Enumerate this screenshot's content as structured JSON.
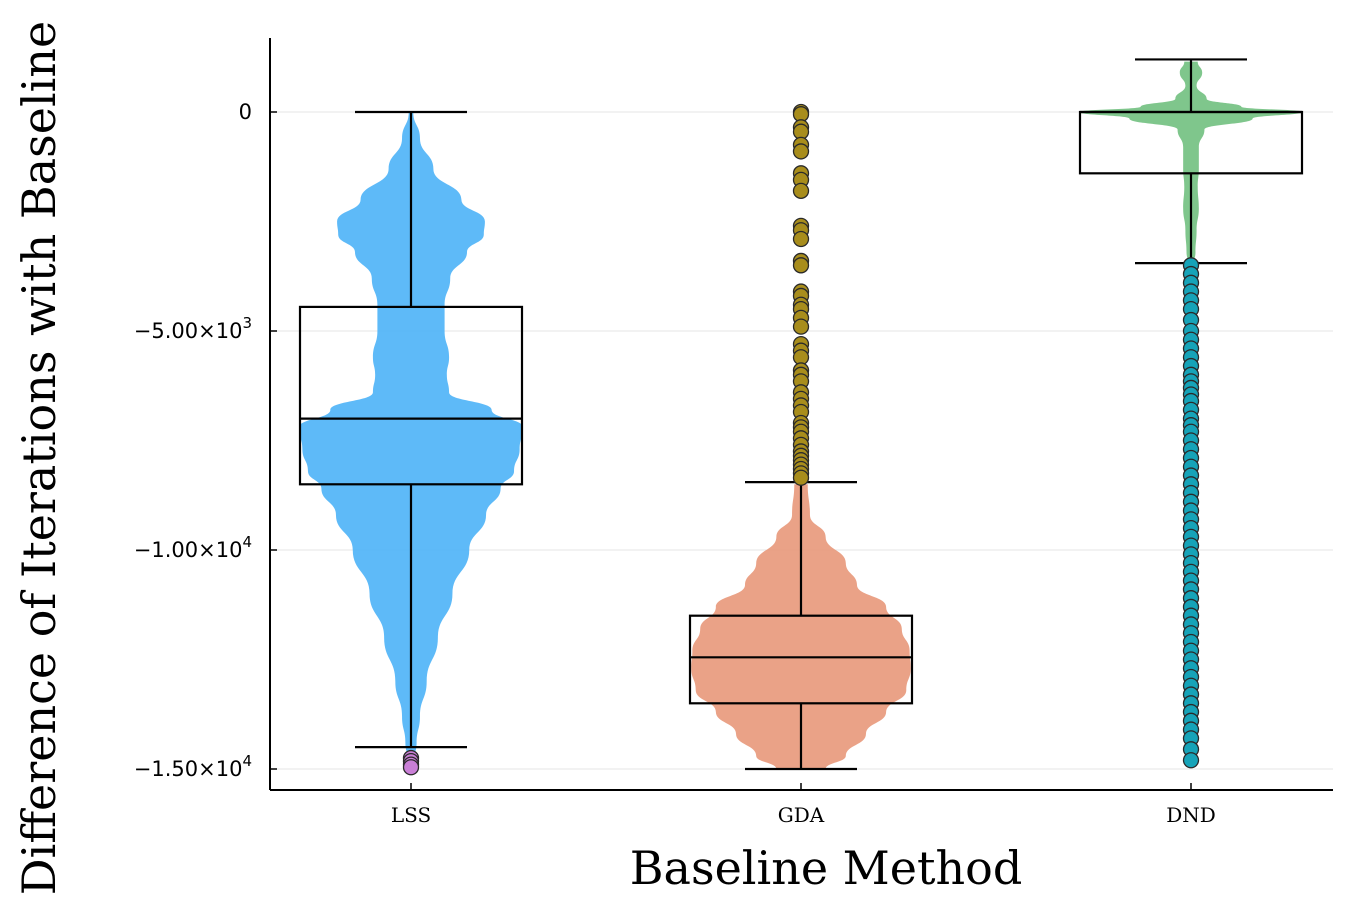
{
  "chart_data": {
    "type": "violin+box",
    "title": "",
    "xlabel": "Baseline Method",
    "ylabel": "Difference of Iterations with Baseline",
    "ylim": [
      -15500,
      1650
    ],
    "yticks": [
      {
        "value": 0,
        "mantissa": "0",
        "exponent": ""
      },
      {
        "value": -5000,
        "mantissa": "−5.00×10",
        "exponent": "3"
      },
      {
        "value": -10000,
        "mantissa": "−1.00×10",
        "exponent": "4"
      },
      {
        "value": -15000,
        "mantissa": "−1.50×10",
        "exponent": "4"
      }
    ],
    "grid": true,
    "categories": [
      "LSS",
      "GDA",
      "DND"
    ],
    "series": [
      {
        "name": "LSS",
        "violin_color": "#4db3f7",
        "outlier_color": "#c97fd6",
        "box": {
          "q1": -8500,
          "median": -7000,
          "q3": -4450,
          "whisker_low": -14500,
          "whisker_high": 0
        },
        "density": [
          [
            0,
            0.02
          ],
          [
            -600,
            0.08
          ],
          [
            -1300,
            0.2
          ],
          [
            -2000,
            0.45
          ],
          [
            -2500,
            0.66
          ],
          [
            -2800,
            0.65
          ],
          [
            -3200,
            0.5
          ],
          [
            -3800,
            0.35
          ],
          [
            -4400,
            0.3
          ],
          [
            -5000,
            0.3
          ],
          [
            -5600,
            0.34
          ],
          [
            -6000,
            0.32
          ],
          [
            -6400,
            0.34
          ],
          [
            -6800,
            0.72
          ],
          [
            -7200,
            1.0
          ],
          [
            -7700,
            0.97
          ],
          [
            -8200,
            0.92
          ],
          [
            -8600,
            0.8
          ],
          [
            -9200,
            0.67
          ],
          [
            -10000,
            0.52
          ],
          [
            -11000,
            0.37
          ],
          [
            -12000,
            0.24
          ],
          [
            -13000,
            0.14
          ],
          [
            -13800,
            0.08
          ],
          [
            -14400,
            0.05
          ],
          [
            -14800,
            0.03
          ]
        ],
        "outliers": [
          -14750,
          -14820,
          -14900,
          -14960
        ]
      },
      {
        "name": "GDA",
        "violin_color": "#e8987a",
        "outlier_color": "#a88d1c",
        "box": {
          "q1": -13500,
          "median": -12450,
          "q3": -11500,
          "whisker_low": -15000,
          "whisker_high": -8450
        },
        "density": [
          [
            -8500,
            0.06
          ],
          [
            -9200,
            0.08
          ],
          [
            -9700,
            0.22
          ],
          [
            -10300,
            0.4
          ],
          [
            -10800,
            0.5
          ],
          [
            -11300,
            0.76
          ],
          [
            -11800,
            0.9
          ],
          [
            -12300,
            0.97
          ],
          [
            -12700,
            0.98
          ],
          [
            -13200,
            0.94
          ],
          [
            -13700,
            0.76
          ],
          [
            -14200,
            0.58
          ],
          [
            -14700,
            0.4
          ],
          [
            -15000,
            0.22
          ]
        ],
        "outliers": [
          0,
          -50,
          -350,
          -450,
          -750,
          -900,
          -1400,
          -1550,
          -1800,
          -2600,
          -2700,
          -2900,
          -3400,
          -3500,
          -4100,
          -4200,
          -4400,
          -4500,
          -4700,
          -4900,
          -5300,
          -5450,
          -5600,
          -5900,
          -6000,
          -6150,
          -6400,
          -6550,
          -6700,
          -6850,
          -7100,
          -7200,
          -7300,
          -7450,
          -7600,
          -7750,
          -7850,
          -7950,
          -8050,
          -8150,
          -8250,
          -8350
        ]
      },
      {
        "name": "DND",
        "violin_color": "#71c07f",
        "outlier_color": "#16a3b8",
        "box": {
          "q1": -1400,
          "median": 0,
          "q3": 0,
          "whisker_low": -3450,
          "whisker_high": 1200
        },
        "density": [
          [
            1150,
            0.06
          ],
          [
            900,
            0.1
          ],
          [
            600,
            0.05
          ],
          [
            300,
            0.14
          ],
          [
            120,
            0.45
          ],
          [
            0,
            1.0
          ],
          [
            -150,
            0.55
          ],
          [
            -400,
            0.12
          ],
          [
            -800,
            0.07
          ],
          [
            -1300,
            0.07
          ],
          [
            -1700,
            0.06
          ],
          [
            -2200,
            0.07
          ],
          [
            -2700,
            0.05
          ],
          [
            -3200,
            0.04
          ],
          [
            -3500,
            0.02
          ]
        ],
        "outliers": [
          -3500,
          -3700,
          -3900,
          -4100,
          -4300,
          -4500,
          -4750,
          -5000,
          -5200,
          -5400,
          -5600,
          -5800,
          -6000,
          -6150,
          -6300,
          -6450,
          -6600,
          -6800,
          -7000,
          -7150,
          -7300,
          -7500,
          -7700,
          -7900,
          -8100,
          -8300,
          -8500,
          -8700,
          -8900,
          -9100,
          -9300,
          -9500,
          -9700,
          -9900,
          -10100,
          -10300,
          -10500,
          -10700,
          -10900,
          -11100,
          -11300,
          -11500,
          -11700,
          -11900,
          -12100,
          -12300,
          -12500,
          -12700,
          -12900,
          -13100,
          -13300,
          -13500,
          -13700,
          -13900,
          -14100,
          -14300,
          -14550,
          -14800
        ]
      }
    ]
  }
}
